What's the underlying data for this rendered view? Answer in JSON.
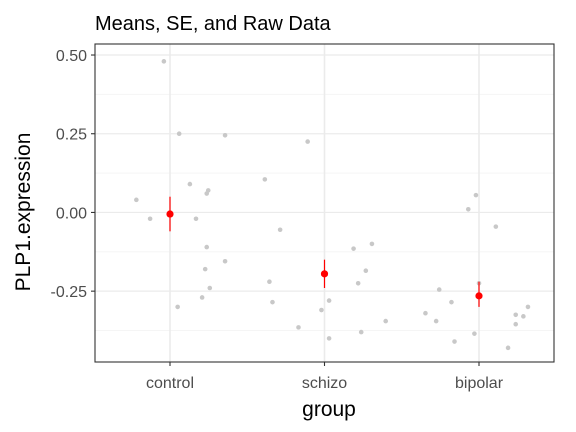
{
  "chart_data": {
    "type": "scatter",
    "title": "Means, SE, and Raw Data",
    "xlabel": "group",
    "ylabel": "PLP1.expression",
    "categories": [
      "control",
      "schizo",
      "bipolar"
    ],
    "yticks": [
      0.5,
      0.25,
      0.0,
      -0.25
    ],
    "ytick_labels": [
      "0.50",
      "0.25",
      "0.00",
      "-0.25"
    ],
    "ylim": [
      -0.475,
      0.535
    ],
    "grid": true,
    "colors": {
      "raw_points": "#c8c8c8",
      "mean": "#ff0000",
      "grid_major": "#ebebeb",
      "grid_minor": "#f5f5f5",
      "panel_border": "#333333"
    },
    "raw_data": [
      {
        "group": "control",
        "points": [
          {
            "x": -0.22,
            "y": 0.04
          },
          {
            "x": -0.13,
            "y": -0.02
          },
          {
            "x": -0.04,
            "y": 0.48
          },
          {
            "x": 0.06,
            "y": 0.25
          },
          {
            "x": 0.05,
            "y": -0.3
          },
          {
            "x": 0.13,
            "y": 0.09
          },
          {
            "x": 0.17,
            "y": -0.02
          },
          {
            "x": 0.21,
            "y": -0.27
          },
          {
            "x": 0.23,
            "y": -0.18
          },
          {
            "x": 0.24,
            "y": 0.06
          },
          {
            "x": 0.25,
            "y": 0.07
          },
          {
            "x": 0.24,
            "y": -0.11
          },
          {
            "x": 0.26,
            "y": -0.24
          },
          {
            "x": 0.36,
            "y": 0.245
          },
          {
            "x": 0.36,
            "y": -0.155
          }
        ]
      },
      {
        "group": "schizo",
        "points": [
          {
            "x": -0.39,
            "y": 0.105
          },
          {
            "x": -0.36,
            "y": -0.22
          },
          {
            "x": -0.34,
            "y": -0.285
          },
          {
            "x": -0.29,
            "y": -0.055
          },
          {
            "x": -0.17,
            "y": -0.365
          },
          {
            "x": -0.11,
            "y": 0.225
          },
          {
            "x": -0.02,
            "y": -0.31
          },
          {
            "x": 0.03,
            "y": -0.4
          },
          {
            "x": 0.03,
            "y": -0.28
          },
          {
            "x": 0.19,
            "y": -0.115
          },
          {
            "x": 0.22,
            "y": -0.225
          },
          {
            "x": 0.24,
            "y": -0.38
          },
          {
            "x": 0.27,
            "y": -0.185
          },
          {
            "x": 0.31,
            "y": -0.1
          },
          {
            "x": 0.4,
            "y": -0.345
          }
        ]
      },
      {
        "group": "bipolar",
        "points": [
          {
            "x": -0.35,
            "y": -0.32
          },
          {
            "x": -0.28,
            "y": -0.345
          },
          {
            "x": -0.26,
            "y": -0.245
          },
          {
            "x": -0.18,
            "y": -0.285
          },
          {
            "x": -0.16,
            "y": -0.41
          },
          {
            "x": -0.07,
            "y": 0.01
          },
          {
            "x": -0.03,
            "y": -0.385
          },
          {
            "x": -0.02,
            "y": 0.055
          },
          {
            "x": 0.0,
            "y": -0.225
          },
          {
            "x": 0.11,
            "y": -0.045
          },
          {
            "x": 0.19,
            "y": -0.43
          },
          {
            "x": 0.24,
            "y": -0.325
          },
          {
            "x": 0.24,
            "y": -0.355
          },
          {
            "x": 0.29,
            "y": -0.33
          },
          {
            "x": 0.32,
            "y": -0.3
          }
        ]
      }
    ],
    "means": [
      {
        "group": "control",
        "mean": -0.005,
        "se_low": -0.06,
        "se_high": 0.05
      },
      {
        "group": "schizo",
        "mean": -0.195,
        "se_low": -0.24,
        "se_high": -0.15
      },
      {
        "group": "bipolar",
        "mean": -0.265,
        "se_low": -0.3,
        "se_high": -0.22
      }
    ]
  }
}
